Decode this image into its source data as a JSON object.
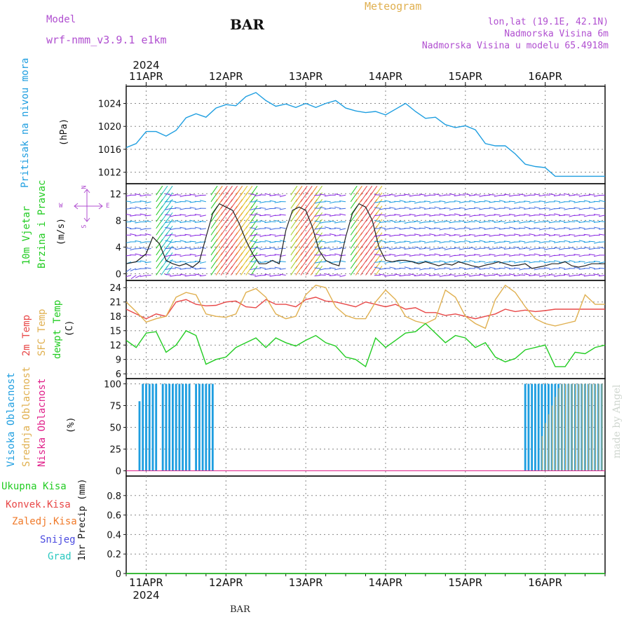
{
  "header": {
    "model_label": "Model",
    "model_name": "wrf-nmm_v3.9.1 e1km",
    "title": "BAR",
    "meteogram": "Meteogram",
    "lonlat": "lon,lat (19.1E, 42.1N)",
    "elevation": "Nadmorska Visina 6m",
    "model_elevation": "Nadmorska Visina u modelu 65.4918m"
  },
  "footer": {
    "station": "BAR",
    "credit": "made by Angel"
  },
  "colors": {
    "purple": "#b04fd0",
    "orange": "#e0b050",
    "blue": "#1e9ee0",
    "red": "#e84848",
    "green": "#22cc22",
    "magenta": "#e0208a"
  },
  "time_axis": {
    "year": "2024",
    "days": [
      "11APR",
      "12APR",
      "13APR",
      "14APR",
      "15APR",
      "16APR"
    ]
  },
  "panels": {
    "pressure": {
      "name": "Pritisak na nivou mora",
      "unit": "(hPa)"
    },
    "wind": {
      "name1": "10m Vjetar",
      "name2": "Brzina i Pravac",
      "unit": "(m/s)",
      "compass": {
        "n": "N",
        "s": "S",
        "e": "E",
        "w": "W"
      }
    },
    "temp": {
      "name1": "2m Temp",
      "name2": "SFC Temp",
      "name3": "dewpt Temp",
      "unit": "(C)"
    },
    "cloud": {
      "name1": "Visoka Oblacnost",
      "name2": "Srednja Oblacnost",
      "name3": "Niska Oblacnost",
      "unit": "(%)"
    },
    "precip": {
      "unit": "1hr Precip (mm)",
      "legend": [
        "Ukupna Kisa",
        "Konvek.Kisa",
        "Zaledj.Kisa",
        "Snijeg",
        "Grad"
      ]
    }
  },
  "chart_data": [
    {
      "type": "line",
      "name": "pressure",
      "x_unit": "hours from 11APR 00:00",
      "xlim": [
        -6,
        138
      ],
      "ylim": [
        1010,
        1027
      ],
      "yticks": [
        1012,
        1016,
        1020,
        1024
      ],
      "grid": true,
      "series": [
        {
          "color": "#1e9ee0",
          "x": [
            -6,
            -3,
            0,
            3,
            6,
            9,
            12,
            15,
            18,
            21,
            24,
            27,
            30,
            33,
            36,
            39,
            42,
            45,
            48,
            51,
            54,
            57,
            60,
            63,
            66,
            69,
            72,
            75,
            78,
            81,
            84,
            87,
            90,
            93,
            96,
            99,
            102,
            105,
            108,
            111,
            114,
            117,
            120,
            123,
            126,
            129,
            132,
            135,
            138
          ],
          "y": [
            1016.3,
            1017.0,
            1019.1,
            1019.1,
            1018.3,
            1019.3,
            1021.5,
            1022.2,
            1021.6,
            1023.2,
            1023.8,
            1023.6,
            1025.2,
            1025.9,
            1024.5,
            1023.5,
            1023.9,
            1023.3,
            1024.0,
            1023.3,
            1024.0,
            1024.5,
            1023.2,
            1022.7,
            1022.4,
            1022.6,
            1022.0,
            1023.0,
            1024.0,
            1022.6,
            1021.4,
            1021.6,
            1020.3,
            1019.8,
            1020.1,
            1019.4,
            1017.0,
            1016.6,
            1016.6,
            1015.2,
            1013.4,
            1013.0,
            1012.8,
            1011.3,
            1011.3,
            1011.3,
            1011.3,
            1011.3,
            1011.3
          ]
        }
      ]
    },
    {
      "type": "line",
      "name": "wind_speed",
      "x_unit": "hours from 11APR 00:00",
      "xlim": [
        -6,
        138
      ],
      "ylim": [
        -1,
        13.5
      ],
      "yticks": [
        0,
        4,
        8,
        12
      ],
      "grid": true,
      "series": [
        {
          "color": "#222222",
          "x": [
            -6,
            -3,
            0,
            2,
            4,
            6,
            8,
            10,
            12,
            14,
            16,
            18,
            20,
            22,
            24,
            26,
            28,
            30,
            32,
            34,
            36,
            38,
            40,
            42,
            44,
            46,
            48,
            50,
            52,
            54,
            56,
            58,
            60,
            62,
            64,
            66,
            68,
            70,
            72,
            74,
            76,
            78,
            80,
            82,
            84,
            86,
            88,
            90,
            92,
            94,
            96,
            98,
            100,
            102,
            104,
            106,
            108,
            110,
            112,
            114,
            116,
            118,
            120,
            122,
            124,
            126,
            128,
            130,
            132,
            134,
            136,
            138
          ],
          "y": [
            1.5,
            1.8,
            3.0,
            5.5,
            4.5,
            2.0,
            1.5,
            1.2,
            1.5,
            1.0,
            1.8,
            5.5,
            9.0,
            10.5,
            10.0,
            9.5,
            7.5,
            5.0,
            3.0,
            1.5,
            1.5,
            2.0,
            1.5,
            6.5,
            9.5,
            10.0,
            9.5,
            7.0,
            3.5,
            2.0,
            1.5,
            1.2,
            5.5,
            9.0,
            10.5,
            10.0,
            8.0,
            4.0,
            2.0,
            1.8,
            2.0,
            2.0,
            1.8,
            1.5,
            1.8,
            1.5,
            1.2,
            1.5,
            1.3,
            1.8,
            1.5,
            1.2,
            1.0,
            1.3,
            1.5,
            1.8,
            1.5,
            1.2,
            1.3,
            1.5,
            0.8,
            1.0,
            1.2,
            1.5,
            1.5,
            1.8,
            1.2,
            1.0,
            1.2,
            1.5,
            1.5,
            1.5
          ]
        }
      ]
    },
    {
      "type": "line",
      "name": "temperature",
      "x_unit": "hours from 11APR 00:00",
      "xlim": [
        -6,
        138
      ],
      "ylim": [
        5,
        25.5
      ],
      "yticks": [
        6,
        9,
        12,
        15,
        18,
        21,
        24
      ],
      "grid": true,
      "series": [
        {
          "color": "#e84848",
          "x": [
            -6,
            -3,
            0,
            3,
            6,
            9,
            12,
            15,
            18,
            21,
            24,
            27,
            30,
            33,
            36,
            39,
            42,
            45,
            48,
            51,
            54,
            57,
            60,
            63,
            66,
            69,
            72,
            75,
            78,
            81,
            84,
            87,
            90,
            93,
            96,
            99,
            102,
            105,
            108,
            111,
            114,
            117,
            120,
            123,
            126,
            129,
            132,
            135,
            138
          ],
          "y": [
            19.5,
            18.5,
            17.5,
            18.5,
            18.0,
            21.0,
            21.5,
            20.5,
            20.2,
            20.3,
            21.0,
            21.2,
            20.0,
            19.8,
            21.5,
            20.5,
            20.5,
            20.0,
            21.5,
            22.0,
            21.2,
            21.0,
            20.5,
            20.0,
            21.0,
            20.5,
            20.0,
            20.5,
            19.5,
            19.8,
            18.8,
            18.8,
            18.2,
            18.5,
            18.0,
            17.5,
            18.0,
            18.5,
            19.5,
            19.0,
            19.3,
            19.0,
            19.2,
            19.5,
            19.5,
            19.5,
            19.5,
            19.5,
            19.5
          ]
        },
        {
          "color": "#e0b050",
          "x": [
            -6,
            -3,
            0,
            3,
            6,
            9,
            12,
            15,
            18,
            21,
            24,
            27,
            30,
            33,
            36,
            39,
            42,
            45,
            48,
            51,
            54,
            57,
            60,
            63,
            66,
            69,
            72,
            75,
            78,
            81,
            84,
            87,
            90,
            93,
            96,
            99,
            102,
            105,
            108,
            111,
            114,
            117,
            120,
            123,
            126,
            129,
            132,
            135,
            138
          ],
          "y": [
            21.0,
            19.0,
            16.8,
            17.5,
            18.0,
            22.0,
            23.0,
            22.5,
            18.5,
            18.0,
            17.8,
            18.5,
            23.0,
            23.8,
            22.0,
            18.5,
            17.5,
            18.0,
            22.5,
            24.5,
            24.0,
            20.0,
            18.2,
            17.5,
            17.5,
            21.0,
            23.5,
            21.5,
            18.0,
            17.0,
            16.5,
            17.5,
            23.5,
            22.0,
            18.0,
            16.5,
            15.5,
            21.5,
            24.5,
            23.0,
            20.0,
            17.5,
            16.5,
            16.0,
            16.5,
            17.0,
            22.5,
            20.5,
            20.5
          ]
        },
        {
          "color": "#22cc22",
          "x": [
            -6,
            -3,
            0,
            3,
            6,
            9,
            12,
            15,
            18,
            21,
            24,
            27,
            30,
            33,
            36,
            39,
            42,
            45,
            48,
            51,
            54,
            57,
            60,
            63,
            66,
            69,
            72,
            75,
            78,
            81,
            84,
            87,
            90,
            93,
            96,
            99,
            102,
            105,
            108,
            111,
            114,
            117,
            120,
            123,
            126,
            129,
            132,
            135,
            138
          ],
          "y": [
            13.0,
            11.5,
            14.5,
            14.8,
            10.5,
            12.0,
            15.0,
            14.0,
            8.0,
            9.0,
            9.5,
            11.5,
            12.5,
            13.5,
            11.5,
            13.5,
            12.5,
            11.8,
            13.0,
            14.0,
            12.5,
            11.8,
            9.5,
            9.0,
            7.5,
            13.5,
            11.5,
            13.0,
            14.5,
            14.8,
            16.5,
            14.5,
            12.5,
            14.0,
            13.5,
            11.5,
            12.5,
            9.5,
            8.5,
            9.2,
            11.0,
            11.5,
            12.0,
            7.5,
            7.5,
            10.5,
            10.2,
            11.5,
            12.0
          ]
        }
      ]
    },
    {
      "type": "bar",
      "name": "cloud_cover",
      "x_unit": "hours from 11APR 00:00",
      "xlim": [
        -6,
        138
      ],
      "ylim": [
        -6,
        106
      ],
      "yticks": [
        0,
        25,
        50,
        75,
        100
      ],
      "grid": true,
      "series": [
        {
          "color": "#1e9ee0",
          "x": [
            -2,
            -1,
            0,
            1,
            2,
            3,
            5,
            6,
            7,
            8,
            9,
            10,
            11,
            12,
            13,
            15,
            16,
            17,
            18,
            19,
            20,
            114,
            115,
            116,
            117,
            118,
            119,
            120,
            121,
            122,
            123,
            124,
            125,
            126,
            127,
            128,
            129,
            130,
            131,
            132,
            133,
            134,
            135,
            136,
            137
          ],
          "values": [
            80,
            100,
            100,
            100,
            100,
            100,
            100,
            100,
            100,
            100,
            100,
            100,
            100,
            100,
            100,
            100,
            100,
            100,
            100,
            100,
            100,
            100,
            100,
            100,
            100,
            100,
            100,
            100,
            100,
            100,
            100,
            100,
            100,
            100,
            100,
            100,
            100,
            100,
            100,
            100,
            100,
            100,
            100,
            100,
            100
          ]
        },
        {
          "color": "#e0b050",
          "x": [
            119,
            120,
            121,
            122,
            123,
            124,
            125,
            126,
            127,
            128,
            129,
            130,
            131,
            132,
            133,
            134,
            135,
            136,
            137
          ],
          "values": [
            40,
            55,
            65,
            75,
            85,
            95,
            100,
            100,
            100,
            100,
            100,
            100,
            100,
            100,
            100,
            100,
            100,
            100,
            100
          ]
        },
        {
          "color": "#e0208a",
          "x": [
            -6,
            138
          ],
          "values": [
            0,
            0
          ]
        }
      ]
    },
    {
      "type": "line",
      "name": "precipitation",
      "x_unit": "hours from 11APR 00:00",
      "xlim": [
        -6,
        138
      ],
      "ylim": [
        0,
        1.0
      ],
      "yticks": [
        0,
        0.2,
        0.4,
        0.6,
        0.8
      ],
      "grid": true,
      "series": [
        {
          "name": "Ukupna Kisa",
          "color": "#22cc22",
          "x": [
            -6,
            138
          ],
          "y": [
            0,
            0
          ]
        }
      ]
    }
  ]
}
